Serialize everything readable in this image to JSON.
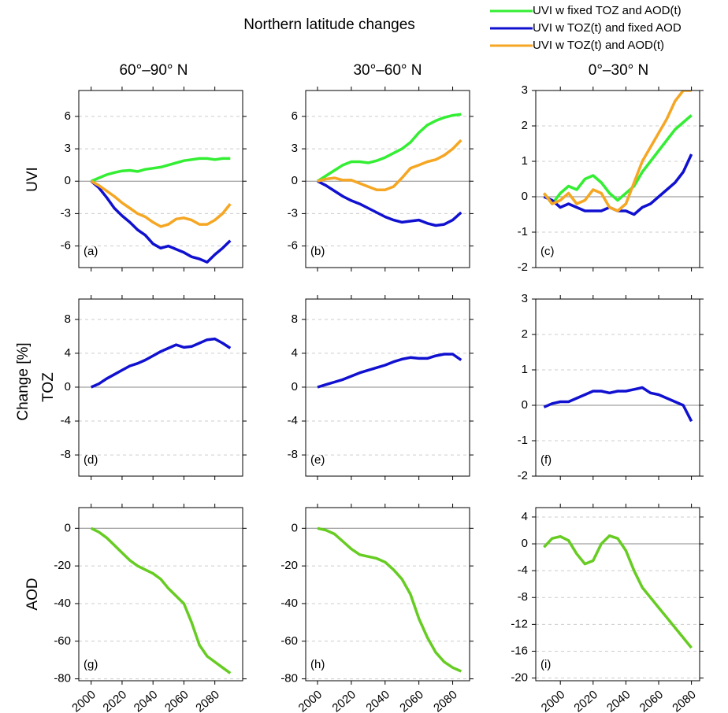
{
  "title": "Northern latitude changes",
  "columns": [
    "60°–90° N",
    "30°–60° N",
    "0°–30° N"
  ],
  "rows": [
    "UVI",
    "TOZ",
    "AOD"
  ],
  "ylabel": "Change [%]",
  "chart_data": [
    {
      "type": "line",
      "annotation": "(a)",
      "xlim": [
        1992,
        2098
      ],
      "ylim": [
        -8,
        8.4
      ],
      "yticks": [
        -6,
        -3,
        0,
        3,
        6
      ],
      "grid": true,
      "zero_line": true,
      "x": [
        2000,
        2005,
        2010,
        2015,
        2020,
        2025,
        2030,
        2035,
        2040,
        2045,
        2050,
        2055,
        2060,
        2065,
        2070,
        2075,
        2080,
        2085,
        2090
      ],
      "series": [
        {
          "name": "UVI w  fixed  TOZ and AOD(t)",
          "color": "#33ee33",
          "values": [
            0,
            0.3,
            0.6,
            0.8,
            0.95,
            1.0,
            0.9,
            1.1,
            1.2,
            1.3,
            1.5,
            1.7,
            1.9,
            2.0,
            2.1,
            2.1,
            2.0,
            2.1,
            2.1
          ]
        },
        {
          "name": "UVI w TOZ(t) and fixed AOD",
          "color": "#1010d0",
          "values": [
            0,
            -0.6,
            -1.5,
            -2.5,
            -3.2,
            -3.8,
            -4.5,
            -5.0,
            -5.8,
            -6.2,
            -6.0,
            -6.3,
            -6.6,
            -7.0,
            -7.2,
            -7.5,
            -6.8,
            -6.2,
            -5.5
          ]
        },
        {
          "name": "UVI w TOZ(t) and AOD(t)",
          "color": "#f5a623",
          "values": [
            0,
            -0.4,
            -0.9,
            -1.4,
            -2.0,
            -2.5,
            -3.0,
            -3.3,
            -3.8,
            -4.2,
            -4.0,
            -3.5,
            -3.4,
            -3.6,
            -4.0,
            -4.0,
            -3.6,
            -3.0,
            -2.1
          ]
        }
      ]
    },
    {
      "type": "line",
      "annotation": "(b)",
      "xlim": [
        1993,
        2090
      ],
      "ylim": [
        -8,
        8.4
      ],
      "yticks": [
        -6,
        -3,
        0,
        3,
        6
      ],
      "grid": true,
      "zero_line": true,
      "x": [
        2000,
        2005,
        2010,
        2015,
        2020,
        2025,
        2030,
        2035,
        2040,
        2045,
        2050,
        2055,
        2060,
        2065,
        2070,
        2075,
        2080,
        2085
      ],
      "series": [
        {
          "color": "#33ee33",
          "values": [
            0,
            0.5,
            1.0,
            1.5,
            1.8,
            1.8,
            1.7,
            1.9,
            2.2,
            2.6,
            3.0,
            3.6,
            4.5,
            5.2,
            5.6,
            5.9,
            6.1,
            6.2
          ]
        },
        {
          "color": "#1010d0",
          "values": [
            0,
            -0.4,
            -0.9,
            -1.4,
            -1.8,
            -2.1,
            -2.5,
            -2.9,
            -3.3,
            -3.6,
            -3.8,
            -3.7,
            -3.6,
            -3.9,
            -4.1,
            -4.0,
            -3.6,
            -2.9
          ]
        },
        {
          "color": "#f5a623",
          "values": [
            0,
            0.2,
            0.3,
            0.1,
            0.1,
            -0.2,
            -0.5,
            -0.8,
            -0.8,
            -0.5,
            0.3,
            1.2,
            1.5,
            1.8,
            2.0,
            2.4,
            3.0,
            3.8
          ]
        }
      ]
    },
    {
      "type": "line",
      "annotation": "(c)",
      "xlim": [
        1985,
        2085
      ],
      "ylim": [
        -2,
        3
      ],
      "yticks": [
        -2,
        -1,
        0,
        1,
        2,
        3
      ],
      "grid": true,
      "zero_line": true,
      "x": [
        1990,
        1995,
        2000,
        2005,
        2010,
        2015,
        2020,
        2025,
        2030,
        2035,
        2040,
        2045,
        2050,
        2055,
        2060,
        2065,
        2070,
        2075,
        2080
      ],
      "series": [
        {
          "color": "#33ee33",
          "values": [
            0.1,
            -0.2,
            0.1,
            0.3,
            0.2,
            0.5,
            0.6,
            0.4,
            0.1,
            -0.1,
            0.1,
            0.3,
            0.7,
            1.0,
            1.3,
            1.6,
            1.9,
            2.1,
            2.3
          ]
        },
        {
          "color": "#1010d0",
          "values": [
            0,
            -0.1,
            -0.3,
            -0.2,
            -0.3,
            -0.4,
            -0.4,
            -0.4,
            -0.3,
            -0.4,
            -0.4,
            -0.5,
            -0.3,
            -0.2,
            0,
            0.2,
            0.4,
            0.7,
            1.2
          ]
        },
        {
          "color": "#f5a623",
          "values": [
            0.1,
            -0.2,
            -0.1,
            0.1,
            -0.2,
            -0.1,
            0.2,
            0.1,
            -0.3,
            -0.4,
            -0.2,
            0.4,
            1.0,
            1.4,
            1.8,
            2.2,
            2.7,
            3.0,
            3.0
          ]
        }
      ]
    },
    {
      "type": "line",
      "annotation": "(d)",
      "xlim": [
        1992,
        2098
      ],
      "ylim": [
        -10.5,
        10.4
      ],
      "yticks": [
        -8,
        -4,
        0,
        4,
        8
      ],
      "grid": true,
      "zero_line": true,
      "x": [
        2000,
        2005,
        2010,
        2015,
        2020,
        2025,
        2030,
        2035,
        2040,
        2045,
        2050,
        2055,
        2060,
        2065,
        2070,
        2075,
        2080,
        2085,
        2090
      ],
      "series": [
        {
          "color": "#1010d0",
          "values": [
            0,
            0.4,
            1.0,
            1.5,
            2.0,
            2.5,
            2.8,
            3.2,
            3.7,
            4.2,
            4.6,
            5.0,
            4.7,
            4.8,
            5.2,
            5.6,
            5.7,
            5.2,
            4.6
          ]
        }
      ]
    },
    {
      "type": "line",
      "annotation": "(e)",
      "xlim": [
        1993,
        2090
      ],
      "ylim": [
        -10.5,
        10.4
      ],
      "yticks": [
        -8,
        -4,
        0,
        4,
        8
      ],
      "grid": true,
      "zero_line": true,
      "x": [
        2000,
        2005,
        2010,
        2015,
        2020,
        2025,
        2030,
        2035,
        2040,
        2045,
        2050,
        2055,
        2060,
        2065,
        2070,
        2075,
        2080,
        2085
      ],
      "series": [
        {
          "color": "#1010d0",
          "values": [
            0,
            0.3,
            0.6,
            0.9,
            1.3,
            1.7,
            2.0,
            2.3,
            2.6,
            3.0,
            3.3,
            3.5,
            3.4,
            3.4,
            3.7,
            3.9,
            3.9,
            3.2
          ]
        }
      ]
    },
    {
      "type": "line",
      "annotation": "(f)",
      "xlim": [
        1985,
        2085
      ],
      "ylim": [
        -2,
        3
      ],
      "yticks": [
        -2,
        -1,
        0,
        1,
        2,
        3
      ],
      "grid": true,
      "zero_line": true,
      "x": [
        1990,
        1995,
        2000,
        2005,
        2010,
        2015,
        2020,
        2025,
        2030,
        2035,
        2040,
        2045,
        2050,
        2055,
        2060,
        2065,
        2070,
        2075,
        2080
      ],
      "series": [
        {
          "color": "#1010d0",
          "values": [
            -0.05,
            0.05,
            0.1,
            0.1,
            0.2,
            0.3,
            0.4,
            0.4,
            0.35,
            0.4,
            0.4,
            0.45,
            0.5,
            0.35,
            0.3,
            0.2,
            0.1,
            0,
            -0.45
          ]
        }
      ]
    },
    {
      "type": "line",
      "annotation": "(g)",
      "xlim": [
        1992,
        2098
      ],
      "ylim": [
        -81,
        11
      ],
      "yticks": [
        -80,
        -60,
        -40,
        -20,
        0
      ],
      "xticks": [
        2000,
        2020,
        2040,
        2060,
        2080
      ],
      "grid": true,
      "zero_line": true,
      "x": [
        2000,
        2005,
        2010,
        2015,
        2020,
        2025,
        2030,
        2035,
        2040,
        2045,
        2050,
        2055,
        2060,
        2065,
        2070,
        2075,
        2080,
        2085,
        2090
      ],
      "series": [
        {
          "color": "#66cc22",
          "values": [
            0,
            -2,
            -5,
            -9,
            -13,
            -17,
            -20,
            -22,
            -24,
            -27,
            -32,
            -36,
            -40,
            -50,
            -62,
            -68,
            -71,
            -74,
            -77
          ]
        }
      ]
    },
    {
      "type": "line",
      "annotation": "(h)",
      "xlim": [
        1993,
        2090
      ],
      "ylim": [
        -81,
        11
      ],
      "yticks": [
        -80,
        -60,
        -40,
        -20,
        0
      ],
      "xticks": [
        2000,
        2020,
        2040,
        2060,
        2080
      ],
      "grid": true,
      "zero_line": true,
      "x": [
        2000,
        2005,
        2010,
        2015,
        2020,
        2025,
        2030,
        2035,
        2040,
        2045,
        2050,
        2055,
        2060,
        2065,
        2070,
        2075,
        2080,
        2085
      ],
      "series": [
        {
          "color": "#66cc22",
          "values": [
            0,
            -1,
            -3,
            -7,
            -11,
            -14,
            -15,
            -16,
            -18,
            -22,
            -27,
            -35,
            -48,
            -58,
            -66,
            -71,
            -74,
            -76
          ]
        }
      ]
    },
    {
      "type": "line",
      "annotation": "(i)",
      "xlim": [
        1985,
        2085
      ],
      "ylim": [
        -20.4,
        5.4
      ],
      "yticks": [
        -20,
        -16,
        -12,
        -8,
        -4,
        0,
        4
      ],
      "xticks": [
        2000,
        2020,
        2040,
        2060,
        2080
      ],
      "grid": true,
      "zero_line": true,
      "x": [
        1990,
        1995,
        2000,
        2005,
        2010,
        2015,
        2020,
        2025,
        2030,
        2035,
        2040,
        2045,
        2050,
        2055,
        2060,
        2065,
        2070,
        2075,
        2080
      ],
      "series": [
        {
          "color": "#66cc22",
          "values": [
            -0.5,
            0.8,
            1.1,
            0.5,
            -1.5,
            -3,
            -2.5,
            0,
            1.2,
            0.8,
            -1,
            -4,
            -6.5,
            -8,
            -9.5,
            -11,
            -12.5,
            -14,
            -15.5
          ]
        }
      ]
    }
  ]
}
